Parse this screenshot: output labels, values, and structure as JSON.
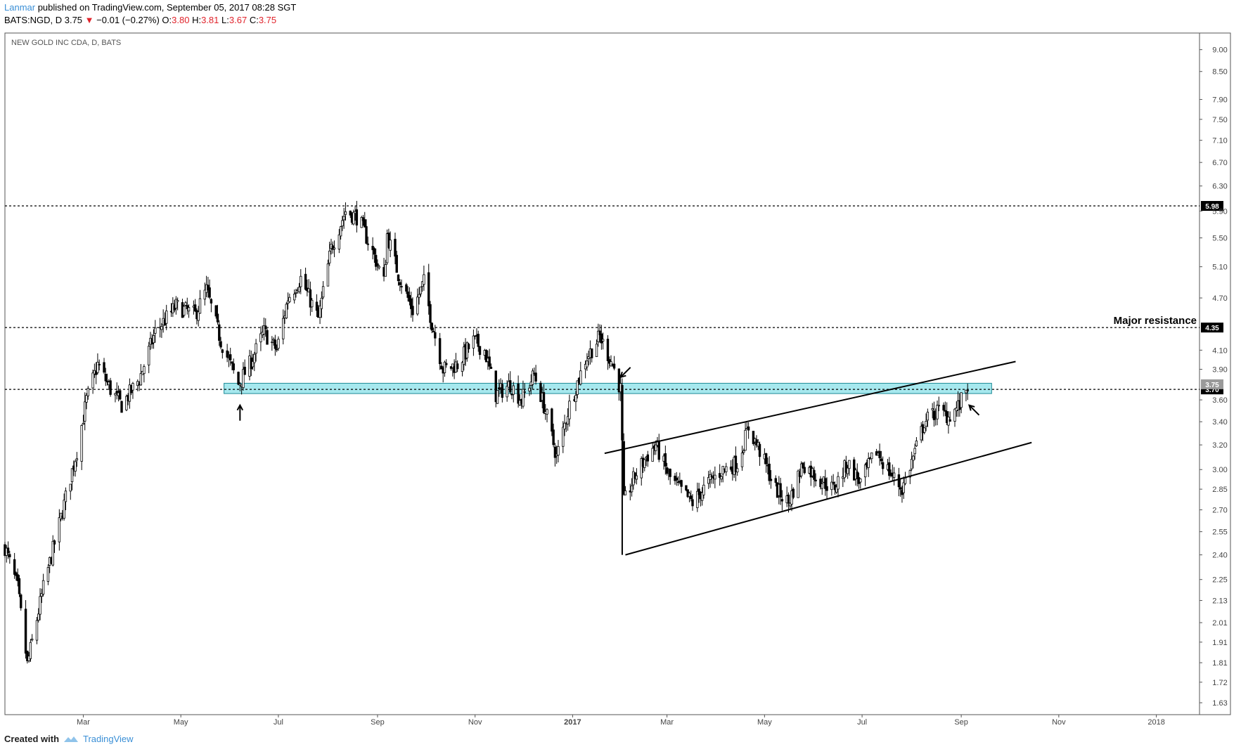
{
  "header": {
    "author": "Lanmar",
    "published": " published on TradingView.com, September 05, 2017 08:28 SGT"
  },
  "ohlc": {
    "symbol": "BATS:NGD, D",
    "last": "3.75",
    "change": "−0.01 (−0.27%)",
    "o_label": "O:",
    "o": "3.80",
    "h_label": "H:",
    "h": "3.81",
    "l_label": "L:",
    "l": "3.67",
    "c_label": "C:",
    "c": "3.75"
  },
  "chart_data": {
    "type": "candlestick",
    "title": "NEW GOLD INC CDA, D, BATS",
    "y_scale": "log",
    "ylim": [
      1.58,
      9.4
    ],
    "y_ticks": [
      "9.00",
      "8.50",
      "7.90",
      "7.50",
      "7.10",
      "6.70",
      "6.30",
      "5.90",
      "5.50",
      "5.10",
      "4.70",
      "4.35",
      "4.10",
      "3.90",
      "3.75",
      "3.60",
      "3.40",
      "3.20",
      "3.00",
      "2.85",
      "2.70",
      "2.55",
      "2.40",
      "2.25",
      "2.13",
      "2.01",
      "1.91",
      "1.81",
      "1.72",
      "1.63"
    ],
    "x_labels": [
      {
        "label": "Mar",
        "date": "2016-03-01"
      },
      {
        "label": "May",
        "date": "2016-05-01"
      },
      {
        "label": "Jul",
        "date": "2016-07-01"
      },
      {
        "label": "Sep",
        "date": "2016-09-01"
      },
      {
        "label": "Nov",
        "date": "2016-11-01"
      },
      {
        "label": "2017",
        "date": "2017-01-01"
      },
      {
        "label": "Mar",
        "date": "2017-03-01"
      },
      {
        "label": "May",
        "date": "2017-05-01"
      },
      {
        "label": "Jul",
        "date": "2017-07-01"
      },
      {
        "label": "Sep",
        "date": "2017-09-01"
      },
      {
        "label": "Nov",
        "date": "2017-11-01"
      },
      {
        "label": "2018",
        "date": "2018-01-01"
      }
    ],
    "x_range": [
      "2016-01-12",
      "2018-01-28"
    ],
    "price_path": [
      {
        "date": "2016-01-12",
        "price": 2.45
      },
      {
        "date": "2016-01-20",
        "price": 2.2
      },
      {
        "date": "2016-01-26",
        "price": 1.8
      },
      {
        "date": "2016-02-05",
        "price": 2.2
      },
      {
        "date": "2016-02-15",
        "price": 2.6
      },
      {
        "date": "2016-02-26",
        "price": 3.15
      },
      {
        "date": "2016-03-03",
        "price": 3.6
      },
      {
        "date": "2016-03-10",
        "price": 3.95
      },
      {
        "date": "2016-03-18",
        "price": 3.7
      },
      {
        "date": "2016-03-25",
        "price": 3.55
      },
      {
        "date": "2016-04-05",
        "price": 3.8
      },
      {
        "date": "2016-04-15",
        "price": 4.3
      },
      {
        "date": "2016-04-28",
        "price": 4.6
      },
      {
        "date": "2016-05-10",
        "price": 4.5
      },
      {
        "date": "2016-05-17",
        "price": 4.8
      },
      {
        "date": "2016-05-26",
        "price": 4.2
      },
      {
        "date": "2016-06-06",
        "price": 3.75
      },
      {
        "date": "2016-06-13",
        "price": 3.95
      },
      {
        "date": "2016-06-22",
        "price": 4.3
      },
      {
        "date": "2016-06-30",
        "price": 4.1
      },
      {
        "date": "2016-07-07",
        "price": 4.7
      },
      {
        "date": "2016-07-15",
        "price": 4.95
      },
      {
        "date": "2016-07-26",
        "price": 4.45
      },
      {
        "date": "2016-08-03",
        "price": 5.35
      },
      {
        "date": "2016-08-12",
        "price": 5.9
      },
      {
        "date": "2016-08-20",
        "price": 5.8
      },
      {
        "date": "2016-08-29",
        "price": 5.3
      },
      {
        "date": "2016-09-05",
        "price": 4.9
      },
      {
        "date": "2016-09-07",
        "price": 5.55
      },
      {
        "date": "2016-09-14",
        "price": 5.0
      },
      {
        "date": "2016-09-23",
        "price": 4.55
      },
      {
        "date": "2016-09-30",
        "price": 4.9
      },
      {
        "date": "2016-10-05",
        "price": 4.4
      },
      {
        "date": "2016-10-12",
        "price": 3.9
      },
      {
        "date": "2016-10-21",
        "price": 3.95
      },
      {
        "date": "2016-10-31",
        "price": 4.2
      },
      {
        "date": "2016-11-07",
        "price": 4.1
      },
      {
        "date": "2016-11-14",
        "price": 3.65
      },
      {
        "date": "2016-11-23",
        "price": 3.75
      },
      {
        "date": "2016-11-30",
        "price": 3.6
      },
      {
        "date": "2016-12-08",
        "price": 3.85
      },
      {
        "date": "2016-12-15",
        "price": 3.5
      },
      {
        "date": "2016-12-22",
        "price": 3.1
      },
      {
        "date": "2016-12-30",
        "price": 3.55
      },
      {
        "date": "2017-01-09",
        "price": 4.0
      },
      {
        "date": "2017-01-18",
        "price": 4.25
      },
      {
        "date": "2017-01-26",
        "price": 3.95
      },
      {
        "date": "2017-01-31",
        "price": 3.7
      },
      {
        "date": "2017-02-02",
        "price": 2.75
      },
      {
        "date": "2017-02-09",
        "price": 2.95
      },
      {
        "date": "2017-02-16",
        "price": 3.1
      },
      {
        "date": "2017-02-22",
        "price": 3.2
      },
      {
        "date": "2017-03-02",
        "price": 2.95
      },
      {
        "date": "2017-03-09",
        "price": 2.85
      },
      {
        "date": "2017-03-17",
        "price": 2.75
      },
      {
        "date": "2017-03-27",
        "price": 2.9
      },
      {
        "date": "2017-04-05",
        "price": 3.0
      },
      {
        "date": "2017-04-14",
        "price": 3.05
      },
      {
        "date": "2017-04-21",
        "price": 3.35
      },
      {
        "date": "2017-04-28",
        "price": 3.15
      },
      {
        "date": "2017-05-08",
        "price": 2.85
      },
      {
        "date": "2017-05-16",
        "price": 2.75
      },
      {
        "date": "2017-05-25",
        "price": 3.05
      },
      {
        "date": "2017-06-02",
        "price": 2.95
      },
      {
        "date": "2017-06-13",
        "price": 2.85
      },
      {
        "date": "2017-06-22",
        "price": 3.05
      },
      {
        "date": "2017-06-30",
        "price": 2.9
      },
      {
        "date": "2017-07-10",
        "price": 3.15
      },
      {
        "date": "2017-07-17",
        "price": 3.0
      },
      {
        "date": "2017-07-26",
        "price": 2.85
      },
      {
        "date": "2017-08-02",
        "price": 3.1
      },
      {
        "date": "2017-08-09",
        "price": 3.4
      },
      {
        "date": "2017-08-17",
        "price": 3.5
      },
      {
        "date": "2017-08-24",
        "price": 3.45
      },
      {
        "date": "2017-08-31",
        "price": 3.55
      },
      {
        "date": "2017-09-05",
        "price": 3.75
      }
    ],
    "horizontal_lines": [
      {
        "price": 5.98,
        "label": "5.98",
        "style": "dotted"
      },
      {
        "price": 4.35,
        "label": "4.35",
        "style": "dotted"
      },
      {
        "price": 3.7,
        "label": "3.70",
        "style": "dotted"
      }
    ],
    "last_price_badge": "3.75",
    "zone": {
      "from_date": "2016-05-28",
      "to_date": "2017-09-20",
      "price_low": 3.66,
      "price_high": 3.76,
      "color": "#a6e8ee"
    },
    "trend_lines": [
      {
        "from": {
          "date": "2017-01-21",
          "price": 3.13
        },
        "to": {
          "date": "2017-10-05",
          "price": 3.98
        }
      },
      {
        "from": {
          "date": "2017-02-03",
          "price": 2.4
        },
        "to": {
          "date": "2017-10-15",
          "price": 3.22
        }
      },
      {
        "from": {
          "date": "2017-02-01",
          "price": 2.4
        },
        "to": {
          "date": "2017-02-01",
          "price": 3.7
        }
      }
    ],
    "annotation": {
      "text": "Major resistance",
      "price": 4.35,
      "position": "right, above the 4.35 line"
    },
    "arrows": [
      {
        "date": "2016-06-07",
        "price": 3.55,
        "direction": "up"
      },
      {
        "date": "2017-01-31",
        "price": 3.82,
        "direction": "down-left"
      },
      {
        "date": "2017-09-06",
        "price": 3.55,
        "direction": "up-left"
      }
    ],
    "grid": false,
    "colors": {
      "candle": "#000000",
      "zone": "#a6e8ee",
      "zone_border": "#1d8a96",
      "author": "#3a8fd6",
      "down": "#e0232b"
    }
  },
  "footer": {
    "created_with": "Created with",
    "brand": "TradingView"
  }
}
